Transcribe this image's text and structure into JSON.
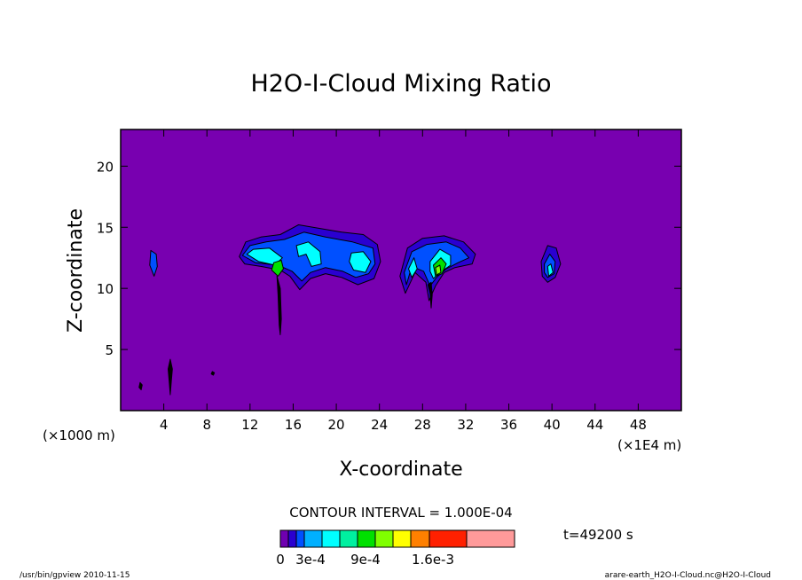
{
  "chart_data": {
    "type": "heatmap",
    "title": "H2O-I-Cloud Mixing Ratio",
    "xlabel": "X-coordinate",
    "ylabel": "Z-coordinate",
    "x_units_left": "(×1000 m)",
    "x_units_right": "(×1E4 m)",
    "xlim": [
      0,
      52
    ],
    "ylim": [
      0,
      23
    ],
    "xticks": [
      "4",
      "8",
      "12",
      "16",
      "20",
      "24",
      "28",
      "32",
      "36",
      "40",
      "44",
      "48"
    ],
    "xtick_values": [
      4,
      8,
      12,
      16,
      20,
      24,
      28,
      32,
      36,
      40,
      44,
      48
    ],
    "yticks": [
      "5",
      "10",
      "15",
      "20"
    ],
    "ytick_values": [
      5,
      10,
      15,
      20
    ],
    "contour_interval_text": "CONTOUR INTERVAL = 1.000E-04",
    "time_text": "t=49200 s",
    "colorbar": {
      "labels": [
        "0",
        "3e-4",
        "9e-4",
        "1.6e-3"
      ],
      "levels": [
        0,
        0.0001,
        0.0002,
        0.0003,
        0.0005,
        0.0007,
        0.0009,
        0.0012,
        0.0014,
        0.0016,
        0.0019
      ],
      "colors": [
        "#6f00b0",
        "#2a00d0",
        "#0050ff",
        "#00b0ff",
        "#00ffff",
        "#00f0a0",
        "#00e000",
        "#80ff00",
        "#ffff00",
        "#ff8000",
        "#ff2000",
        "#ff9a9a"
      ]
    },
    "background_color": "#7800b0",
    "clouds": [
      {
        "x": 3,
        "z": 12.2,
        "peak": 0.0002
      },
      {
        "x": 17.5,
        "z": 12.2,
        "peak": 0.0008
      },
      {
        "x": 29.5,
        "z": 12.0,
        "peak": 0.0009
      },
      {
        "x": 39.8,
        "z": 11.8,
        "peak": 0.0005
      }
    ]
  },
  "footer": {
    "left": "/usr/bin/gpview  2010-11-15",
    "right": "arare-earth_H2O-I-Cloud.nc@H2O-I-Cloud"
  }
}
